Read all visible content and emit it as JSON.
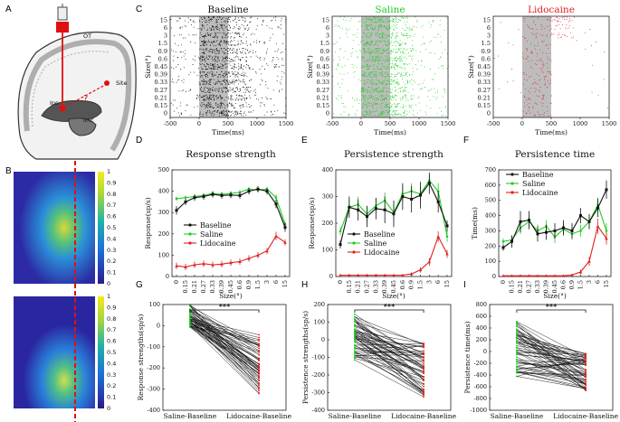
{
  "panel_letters": {
    "A": "A",
    "B": "B",
    "C": "C",
    "D": "D",
    "E": "E",
    "F": "F",
    "G": "G",
    "H": "H",
    "I": "I"
  },
  "colors": {
    "baseline": "#111111",
    "saline": "#22cc22",
    "lidocaine": "#e02020",
    "shade": "#bdbdbd"
  },
  "panel_a": {
    "label_ot": "OT",
    "label_site": "Site",
    "label_ipc": "Ipc",
    "label_imc": "Imc",
    "label_question": "?"
  },
  "panel_b": {
    "colorbar_ticks": [
      "1",
      "0.9",
      "0.8",
      "0.7",
      "0.6",
      "0.5",
      "0.4",
      "0.3",
      "0.2",
      "0.1",
      "0"
    ]
  },
  "chart_data": [
    {
      "id": "C-baseline",
      "type": "raster",
      "title": "Baseline",
      "ylabel": "Size(°)",
      "xlabel": "Time(ms)",
      "categories": [
        "0",
        "0.15",
        "0.21",
        "0.27",
        "0.33",
        "0.39",
        "0.45",
        "0.6",
        "0.9",
        "1.5",
        "3",
        "6",
        "15"
      ],
      "xticks": [
        "-500",
        "0",
        "500",
        "1000",
        "1500"
      ],
      "xlim": [
        -500,
        1500
      ],
      "stim_window": [
        0,
        500
      ]
    },
    {
      "id": "C-saline",
      "type": "raster",
      "title": "Saline",
      "ylabel": "Size(°)",
      "xlabel": "Time(ms)",
      "categories": [
        "0",
        "0.15",
        "0.21",
        "0.27",
        "0.33",
        "0.39",
        "0.45",
        "0.6",
        "0.9",
        "1.5",
        "3",
        "6",
        "15"
      ],
      "xticks": [
        "-500",
        "0",
        "500",
        "1000",
        "1500"
      ],
      "xlim": [
        -500,
        1500
      ],
      "stim_window": [
        0,
        500
      ]
    },
    {
      "id": "C-lidocaine",
      "type": "raster",
      "title": "Lidocaine",
      "ylabel": "Size(°)",
      "xlabel": "Time(ms)",
      "categories": [
        "0",
        "0.15",
        "0.21",
        "0.27",
        "0.33",
        "0.39",
        "0.45",
        "0.6",
        "0.9",
        "1.5",
        "3",
        "6",
        "15"
      ],
      "xticks": [
        "-500",
        "0",
        "500",
        "1000",
        "1500"
      ],
      "xlim": [
        -500,
        1500
      ],
      "stim_window": [
        0,
        500
      ]
    },
    {
      "id": "D",
      "type": "line",
      "title": "Response strength",
      "ylabel": "Response(sp/s)",
      "xlabel": "Size(°)",
      "categories": [
        "0",
        "0.15",
        "0.21",
        "0.27",
        "0.33",
        "0.39",
        "0.45",
        "0.6",
        "0.9",
        "1.5",
        "3",
        "6",
        "15"
      ],
      "ylim": [
        0,
        500
      ],
      "yticks": [
        "0",
        "100",
        "200",
        "300",
        "400",
        "500"
      ],
      "series": [
        {
          "name": "Baseline",
          "values": [
            310,
            350,
            370,
            375,
            385,
            380,
            382,
            380,
            400,
            410,
            400,
            340,
            230
          ],
          "err": [
            20,
            15,
            15,
            15,
            15,
            15,
            15,
            15,
            15,
            15,
            15,
            20,
            20
          ]
        },
        {
          "name": "Saline",
          "values": [
            365,
            370,
            375,
            380,
            390,
            385,
            390,
            395,
            410,
            405,
            410,
            370,
            245
          ],
          "err": [
            10,
            10,
            10,
            10,
            10,
            10,
            10,
            10,
            10,
            10,
            10,
            15,
            15
          ]
        },
        {
          "name": "Lidocaine",
          "values": [
            50,
            45,
            55,
            60,
            55,
            58,
            65,
            70,
            85,
            100,
            120,
            190,
            160
          ],
          "err": [
            15,
            15,
            15,
            15,
            15,
            15,
            15,
            15,
            15,
            15,
            15,
            20,
            15
          ]
        }
      ],
      "legend": [
        "Baseline",
        "Saline",
        "Lidocaine"
      ]
    },
    {
      "id": "E",
      "type": "line",
      "title": "Persistence strength",
      "ylabel": "Response(sp/s)",
      "xlabel": "Size(°)",
      "categories": [
        "0",
        "0.15",
        "0.21",
        "0.27",
        "0.33",
        "0.39",
        "0.45",
        "0.6",
        "0.9",
        "1.5",
        "3",
        "6",
        "15"
      ],
      "ylim": [
        0,
        400
      ],
      "yticks": [
        "0",
        "100",
        "200",
        "300",
        "400"
      ],
      "series": [
        {
          "name": "Baseline",
          "values": [
            120,
            260,
            250,
            225,
            255,
            250,
            235,
            300,
            290,
            305,
            350,
            280,
            190
          ],
          "err": [
            15,
            40,
            40,
            40,
            40,
            50,
            50,
            50,
            50,
            50,
            40,
            40,
            20
          ]
        },
        {
          "name": "Saline",
          "values": [
            170,
            260,
            270,
            235,
            265,
            285,
            240,
            310,
            320,
            310,
            360,
            320,
            150
          ],
          "err": [
            15,
            30,
            30,
            30,
            30,
            30,
            30,
            30,
            30,
            30,
            20,
            30,
            20
          ]
        },
        {
          "name": "Lidocaine",
          "values": [
            5,
            5,
            5,
            5,
            5,
            5,
            5,
            5,
            10,
            25,
            55,
            150,
            85
          ],
          "err": [
            2,
            2,
            2,
            2,
            2,
            2,
            2,
            2,
            5,
            10,
            15,
            20,
            15
          ]
        }
      ],
      "legend": [
        "Baseline",
        "Saline",
        "Lidocaine"
      ]
    },
    {
      "id": "F",
      "type": "line",
      "title": "Persistence time",
      "ylabel": "Time(ms)",
      "xlabel": "Size(°)",
      "categories": [
        "0",
        "0.15",
        "0.21",
        "0.27",
        "0.33",
        "0.39",
        "0.45",
        "0.6",
        "0.9",
        "1.5",
        "3",
        "6",
        "15"
      ],
      "ylim": [
        0,
        700
      ],
      "yticks": [
        "0",
        "100",
        "200",
        "300",
        "400",
        "500",
        "600",
        "700"
      ],
      "series": [
        {
          "name": "Baseline",
          "values": [
            190,
            230,
            360,
            370,
            280,
            290,
            300,
            320,
            300,
            400,
            360,
            450,
            570
          ],
          "err": [
            20,
            40,
            70,
            60,
            50,
            50,
            50,
            50,
            50,
            50,
            50,
            60,
            60
          ]
        },
        {
          "name": "Saline",
          "values": [
            230,
            240,
            320,
            360,
            300,
            330,
            260,
            310,
            280,
            300,
            360,
            470,
            300
          ],
          "err": [
            20,
            30,
            40,
            40,
            40,
            40,
            40,
            40,
            40,
            40,
            40,
            50,
            50
          ]
        },
        {
          "name": "Lidocaine",
          "values": [
            5,
            5,
            5,
            5,
            5,
            5,
            5,
            5,
            10,
            30,
            100,
            330,
            250
          ],
          "err": [
            2,
            2,
            2,
            2,
            2,
            2,
            2,
            2,
            5,
            15,
            30,
            50,
            40
          ]
        }
      ],
      "legend": [
        "Baseline",
        "Saline",
        "Lidocaine"
      ]
    },
    {
      "id": "G",
      "type": "paired",
      "ylabel": "Response strengths(sp/s)",
      "categories": [
        "Saline-Baseline",
        "Lidocaine-Baseline"
      ],
      "ylim": [
        -400,
        100
      ],
      "yticks": [
        "100",
        "0",
        "-100",
        "-200",
        "-300",
        "-400"
      ],
      "significance": "***"
    },
    {
      "id": "H",
      "type": "paired",
      "ylabel": "Persistence strengths(sp/s)",
      "categories": [
        "Saline-Baseline",
        "Lidocaine-Baseline"
      ],
      "ylim": [
        -400,
        200
      ],
      "yticks": [
        "200",
        "100",
        "0",
        "-100",
        "-200",
        "-300",
        "-400"
      ],
      "significance": "***"
    },
    {
      "id": "I",
      "type": "paired",
      "ylabel": "Persistence time(ms)",
      "categories": [
        "Saline-Baseline",
        "Lidocaine-Baseline"
      ],
      "ylim": [
        -1000,
        800
      ],
      "yticks": [
        "800",
        "600",
        "400",
        "200",
        "0",
        "-200",
        "-400",
        "-600",
        "-800",
        "-1000"
      ],
      "significance": "***"
    }
  ]
}
